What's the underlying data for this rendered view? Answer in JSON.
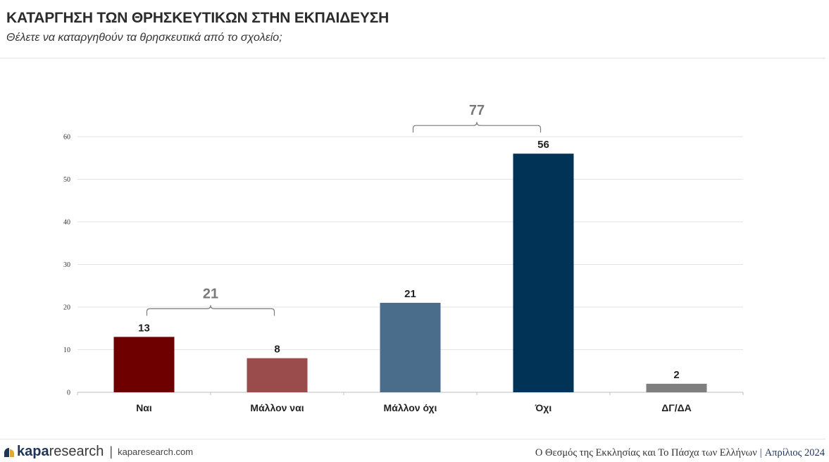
{
  "header": {
    "title": "ΚΑΤΑΡΓΗΣΗ ΤΩΝ ΘΡΗΣΚΕΥΤΙΚΩΝ ΣΤΗΝ ΕΚΠΑΙΔΕΥΣΗ",
    "subtitle": "Θέλετε να καταργηθούν τα θρησκευτικά από το σχολείο;"
  },
  "chart_data": {
    "type": "bar",
    "categories": [
      "Ναι",
      "Μάλλον ναι",
      "Μάλλον όχι",
      "Όχι",
      "ΔΓ/ΔΑ"
    ],
    "values": [
      13,
      8,
      21,
      56,
      2
    ],
    "colors": [
      "#6e0000",
      "#9a4b4b",
      "#4b6d8c",
      "#003355",
      "#7f7f7f"
    ],
    "ylim": [
      0,
      60
    ],
    "yticks": [
      0,
      10,
      20,
      30,
      40,
      50,
      60
    ],
    "grid": true,
    "groups": [
      {
        "label": "21",
        "from": 0,
        "to": 1
      },
      {
        "label": "77",
        "from": 2,
        "to": 3
      }
    ]
  },
  "footer": {
    "logo_kapa": "kapa",
    "logo_research": "research",
    "separator": "|",
    "site": "kaparesearch.com",
    "survey": "Ο Θεσμός της Εκκλησίας και Το Πάσχα των Ελλήνων",
    "date": "Απρίλιος 2024"
  }
}
